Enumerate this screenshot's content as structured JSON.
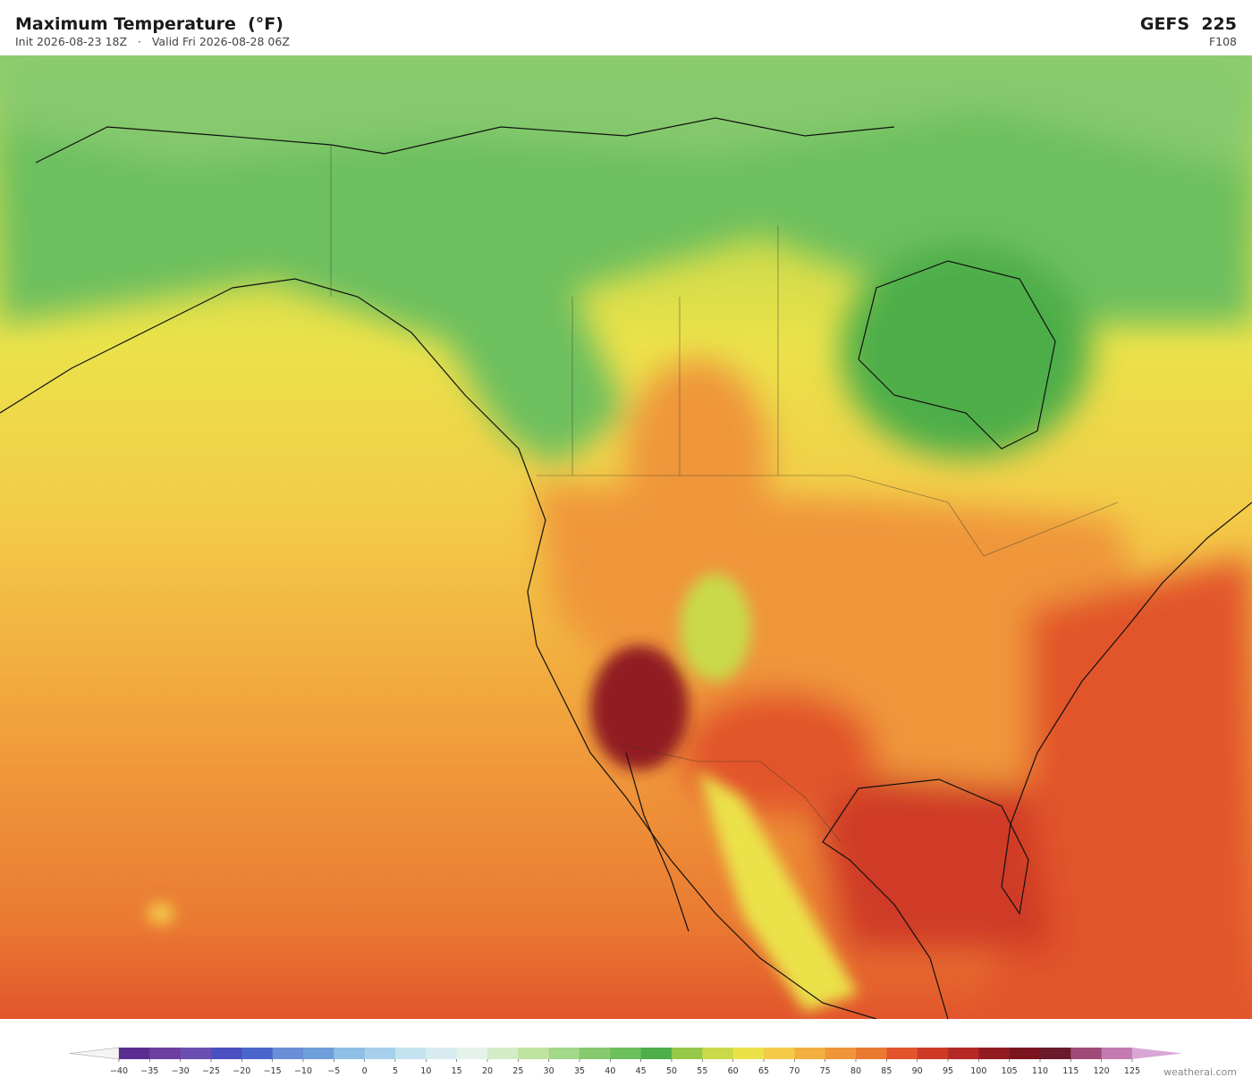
{
  "header": {
    "title": "Maximum Temperature  (°F)",
    "subtitle": "Init 2026-08-23 18Z   ·   Valid Fri 2026-08-28 06Z",
    "model": "GEFS  225",
    "forecast_hour": "F108"
  },
  "colorbar": {
    "ticks": [
      {
        "value": -40,
        "label": "−40"
      },
      {
        "value": -35,
        "label": "−35"
      },
      {
        "value": -30,
        "label": "−30"
      },
      {
        "value": -25,
        "label": "−25"
      },
      {
        "value": -20,
        "label": "−20"
      },
      {
        "value": -15,
        "label": "−15"
      },
      {
        "value": -10,
        "label": "−10"
      },
      {
        "value": -5,
        "label": "−5"
      },
      0,
      5,
      10,
      15,
      20,
      25,
      30,
      35,
      40,
      45,
      50,
      55,
      60,
      65,
      70,
      75,
      80,
      85,
      90,
      95,
      100,
      105,
      110,
      115,
      120,
      125
    ],
    "colors": [
      "#5a2d91",
      "#6c3fa0",
      "#6b4fb0",
      "#4b4fc0",
      "#4a66cc",
      "#6a8fd6",
      "#6f9fda",
      "#8fbfe6",
      "#a6d0ec",
      "#c4e2f0",
      "#d8ecf0",
      "#e4f2ea",
      "#d4ecc8",
      "#bfe3a0",
      "#a3d78a",
      "#86c96e",
      "#6dbf5e",
      "#4dae4a",
      "#96c94a",
      "#c9d94a",
      "#ebe24a",
      "#f3cb48",
      "#f2b040",
      "#ef963a",
      "#ea7a32",
      "#e2552c",
      "#cf3a27",
      "#b52a25",
      "#921c22",
      "#7a1520",
      "#6a1a2a",
      "#a04a7a",
      "#c27ab0"
    ],
    "under_color": "#f4f4f4",
    "over_color": "#d9a6d6"
  },
  "footer": {
    "credit": "weatherai.com"
  }
}
